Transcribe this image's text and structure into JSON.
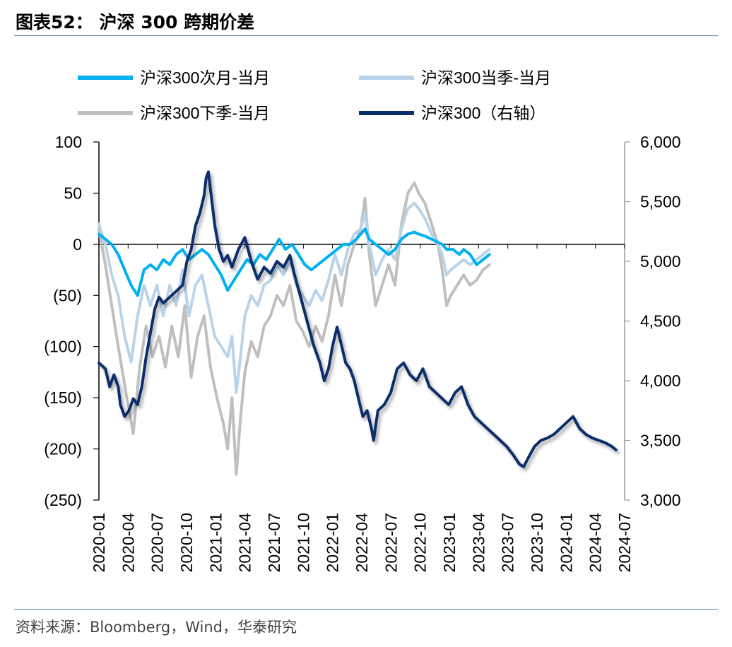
{
  "title": "图表52：  沪深 300 跨期价差",
  "source": "资料来源：Bloomberg，Wind，华泰研究",
  "chart_data": {
    "type": "line",
    "x_ticks": [
      "2020-01",
      "2020-04",
      "2020-07",
      "2020-10",
      "2021-01",
      "2021-04",
      "2021-07",
      "2021-10",
      "2022-01",
      "2022-04",
      "2022-07",
      "2022-10",
      "2023-01",
      "2023-04",
      "2023-07",
      "2023-10",
      "2024-01",
      "2024-04",
      "2024-07"
    ],
    "y_left": {
      "min": -250,
      "max": 100,
      "ticks": [
        "100",
        "50",
        "0",
        "(50)",
        "(100)",
        "(150)",
        "(200)",
        "(250)"
      ]
    },
    "y_right": {
      "min": 3000,
      "max": 6000,
      "ticks": [
        "6,000",
        "5,500",
        "5,000",
        "4,500",
        "4,000",
        "3,500",
        "3,000"
      ]
    },
    "series": [
      {
        "name": "沪深300下季-当月",
        "axis": "left",
        "color": "#bfbfbf",
        "points": [
          [
            0.0,
            15
          ],
          [
            0.3,
            -20
          ],
          [
            0.6,
            -60
          ],
          [
            0.9,
            -100
          ],
          [
            1.3,
            -150
          ],
          [
            1.6,
            -185
          ],
          [
            1.9,
            -120
          ],
          [
            2.2,
            -80
          ],
          [
            2.5,
            -110
          ],
          [
            2.8,
            -90
          ],
          [
            3.1,
            -120
          ],
          [
            3.4,
            -80
          ],
          [
            3.7,
            -110
          ],
          [
            4.0,
            -60
          ],
          [
            4.3,
            -130
          ],
          [
            4.6,
            -90
          ],
          [
            4.9,
            -70
          ],
          [
            5.2,
            -120
          ],
          [
            5.5,
            -150
          ],
          [
            5.8,
            -175
          ],
          [
            6.0,
            -200
          ],
          [
            6.2,
            -150
          ],
          [
            6.4,
            -225
          ],
          [
            6.6,
            -170
          ],
          [
            6.8,
            -125
          ],
          [
            7.1,
            -95
          ],
          [
            7.4,
            -110
          ],
          [
            7.7,
            -80
          ],
          [
            8.0,
            -70
          ],
          [
            8.3,
            -50
          ],
          [
            8.6,
            -60
          ],
          [
            8.9,
            -40
          ],
          [
            9.2,
            -75
          ],
          [
            9.5,
            -85
          ],
          [
            9.8,
            -100
          ],
          [
            10.1,
            -80
          ],
          [
            10.4,
            -95
          ],
          [
            10.7,
            -70
          ],
          [
            11.0,
            -30
          ],
          [
            11.3,
            -60
          ],
          [
            11.6,
            -20
          ],
          [
            11.9,
            0
          ],
          [
            12.2,
            15
          ],
          [
            12.4,
            45
          ],
          [
            12.6,
            -10
          ],
          [
            12.9,
            -60
          ],
          [
            13.2,
            -40
          ],
          [
            13.5,
            -20
          ],
          [
            13.8,
            -40
          ],
          [
            14.1,
            20
          ],
          [
            14.4,
            50
          ],
          [
            14.7,
            60
          ],
          [
            14.9,
            50
          ],
          [
            15.2,
            40
          ],
          [
            15.5,
            20
          ],
          [
            15.8,
            0
          ],
          [
            16.0,
            -25
          ],
          [
            16.2,
            -60
          ],
          [
            16.4,
            -50
          ],
          [
            16.7,
            -40
          ],
          [
            17.0,
            -30
          ],
          [
            17.3,
            -40
          ],
          [
            17.6,
            -35
          ],
          [
            17.9,
            -25
          ],
          [
            18.2,
            -20
          ]
        ]
      },
      {
        "name": "沪深300当季-当月",
        "axis": "left",
        "color": "#b9d4ea",
        "points": [
          [
            0.0,
            20
          ],
          [
            0.3,
            0
          ],
          [
            0.6,
            -30
          ],
          [
            0.9,
            -50
          ],
          [
            1.2,
            -90
          ],
          [
            1.5,
            -115
          ],
          [
            1.8,
            -70
          ],
          [
            2.1,
            -40
          ],
          [
            2.4,
            -60
          ],
          [
            2.7,
            -40
          ],
          [
            3.0,
            -70
          ],
          [
            3.3,
            -40
          ],
          [
            3.6,
            -60
          ],
          [
            3.9,
            -25
          ],
          [
            4.2,
            -70
          ],
          [
            4.5,
            -40
          ],
          [
            4.8,
            -30
          ],
          [
            5.1,
            -60
          ],
          [
            5.4,
            -90
          ],
          [
            5.7,
            -100
          ],
          [
            6.0,
            -110
          ],
          [
            6.2,
            -90
          ],
          [
            6.4,
            -145
          ],
          [
            6.6,
            -110
          ],
          [
            6.8,
            -70
          ],
          [
            7.1,
            -50
          ],
          [
            7.4,
            -60
          ],
          [
            7.7,
            -40
          ],
          [
            8.0,
            -35
          ],
          [
            8.3,
            -20
          ],
          [
            8.6,
            -30
          ],
          [
            8.9,
            -15
          ],
          [
            9.2,
            -40
          ],
          [
            9.5,
            -50
          ],
          [
            9.8,
            -60
          ],
          [
            10.1,
            -45
          ],
          [
            10.4,
            -55
          ],
          [
            10.7,
            -35
          ],
          [
            11.0,
            -10
          ],
          [
            11.3,
            -30
          ],
          [
            11.6,
            -5
          ],
          [
            11.9,
            10
          ],
          [
            12.2,
            15
          ],
          [
            12.4,
            30
          ],
          [
            12.6,
            0
          ],
          [
            12.9,
            -30
          ],
          [
            13.2,
            -15
          ],
          [
            13.5,
            -5
          ],
          [
            13.8,
            -15
          ],
          [
            14.1,
            15
          ],
          [
            14.4,
            35
          ],
          [
            14.7,
            40
          ],
          [
            14.9,
            35
          ],
          [
            15.2,
            25
          ],
          [
            15.5,
            10
          ],
          [
            15.8,
            0
          ],
          [
            16.0,
            -10
          ],
          [
            16.2,
            -30
          ],
          [
            16.4,
            -25
          ],
          [
            16.7,
            -20
          ],
          [
            17.0,
            -15
          ],
          [
            17.3,
            -20
          ],
          [
            17.6,
            -15
          ],
          [
            17.9,
            -10
          ],
          [
            18.2,
            -5
          ]
        ]
      },
      {
        "name": "沪深300次月-当月",
        "axis": "left",
        "color": "#00b0f0",
        "points": [
          [
            0.0,
            10
          ],
          [
            0.3,
            5
          ],
          [
            0.6,
            0
          ],
          [
            0.9,
            -10
          ],
          [
            1.2,
            -25
          ],
          [
            1.5,
            -40
          ],
          [
            1.8,
            -50
          ],
          [
            2.1,
            -25
          ],
          [
            2.4,
            -20
          ],
          [
            2.7,
            -25
          ],
          [
            3.0,
            -15
          ],
          [
            3.3,
            -20
          ],
          [
            3.6,
            -10
          ],
          [
            3.9,
            -5
          ],
          [
            4.2,
            -15
          ],
          [
            4.5,
            -10
          ],
          [
            4.8,
            -5
          ],
          [
            5.1,
            -10
          ],
          [
            5.4,
            -20
          ],
          [
            5.7,
            -30
          ],
          [
            6.0,
            -45
          ],
          [
            6.3,
            -35
          ],
          [
            6.6,
            -25
          ],
          [
            6.9,
            -15
          ],
          [
            7.2,
            -20
          ],
          [
            7.5,
            -10
          ],
          [
            7.8,
            -15
          ],
          [
            8.1,
            -5
          ],
          [
            8.4,
            5
          ],
          [
            8.7,
            -5
          ],
          [
            9.0,
            0
          ],
          [
            9.3,
            -10
          ],
          [
            9.6,
            -20
          ],
          [
            9.9,
            -25
          ],
          [
            10.2,
            -20
          ],
          [
            10.5,
            -15
          ],
          [
            10.8,
            -10
          ],
          [
            11.1,
            -5
          ],
          [
            11.4,
            0
          ],
          [
            11.7,
            0
          ],
          [
            12.0,
            5
          ],
          [
            12.2,
            10
          ],
          [
            12.4,
            15
          ],
          [
            12.6,
            5
          ],
          [
            12.9,
            0
          ],
          [
            13.2,
            -5
          ],
          [
            13.5,
            -10
          ],
          [
            13.8,
            -5
          ],
          [
            14.1,
            5
          ],
          [
            14.4,
            10
          ],
          [
            14.7,
            12
          ],
          [
            14.9,
            10
          ],
          [
            15.2,
            8
          ],
          [
            15.5,
            5
          ],
          [
            15.8,
            2
          ],
          [
            16.0,
            0
          ],
          [
            16.2,
            -5
          ],
          [
            16.5,
            -5
          ],
          [
            16.8,
            -10
          ],
          [
            17.0,
            -5
          ],
          [
            17.3,
            -10
          ],
          [
            17.6,
            -20
          ],
          [
            17.9,
            -15
          ],
          [
            18.2,
            -10
          ]
        ]
      },
      {
        "name": "沪深300（右轴）",
        "axis": "right",
        "color": "#0b2f6b",
        "points": [
          [
            0.0,
            4150
          ],
          [
            0.3,
            4100
          ],
          [
            0.5,
            3950
          ],
          [
            0.7,
            4050
          ],
          [
            0.9,
            3950
          ],
          [
            1.0,
            3800
          ],
          [
            1.2,
            3700
          ],
          [
            1.4,
            3750
          ],
          [
            1.6,
            3850
          ],
          [
            1.8,
            3800
          ],
          [
            2.0,
            3950
          ],
          [
            2.2,
            4200
          ],
          [
            2.4,
            4400
          ],
          [
            2.6,
            4600
          ],
          [
            2.8,
            4700
          ],
          [
            3.0,
            4650
          ],
          [
            3.3,
            4700
          ],
          [
            3.6,
            4750
          ],
          [
            3.9,
            4800
          ],
          [
            4.1,
            5000
          ],
          [
            4.3,
            5100
          ],
          [
            4.5,
            5300
          ],
          [
            4.7,
            5400
          ],
          [
            4.9,
            5550
          ],
          [
            5.0,
            5700
          ],
          [
            5.1,
            5750
          ],
          [
            5.2,
            5600
          ],
          [
            5.4,
            5300
          ],
          [
            5.6,
            5100
          ],
          [
            5.8,
            5000
          ],
          [
            6.0,
            5050
          ],
          [
            6.2,
            4950
          ],
          [
            6.5,
            5100
          ],
          [
            6.8,
            5200
          ],
          [
            7.1,
            5000
          ],
          [
            7.4,
            4850
          ],
          [
            7.7,
            4950
          ],
          [
            8.0,
            4900
          ],
          [
            8.3,
            5000
          ],
          [
            8.6,
            4950
          ],
          [
            8.9,
            5050
          ],
          [
            9.1,
            4900
          ],
          [
            9.4,
            4700
          ],
          [
            9.7,
            4500
          ],
          [
            10.0,
            4300
          ],
          [
            10.3,
            4150
          ],
          [
            10.5,
            4000
          ],
          [
            10.7,
            4100
          ],
          [
            10.9,
            4300
          ],
          [
            11.1,
            4450
          ],
          [
            11.3,
            4300
          ],
          [
            11.5,
            4150
          ],
          [
            11.7,
            4100
          ],
          [
            11.9,
            4000
          ],
          [
            12.1,
            3850
          ],
          [
            12.3,
            3700
          ],
          [
            12.5,
            3750
          ],
          [
            12.7,
            3600
          ],
          [
            12.8,
            3500
          ],
          [
            13.0,
            3750
          ],
          [
            13.3,
            3800
          ],
          [
            13.6,
            3900
          ],
          [
            13.9,
            4100
          ],
          [
            14.2,
            4150
          ],
          [
            14.5,
            4050
          ],
          [
            14.8,
            4000
          ],
          [
            15.1,
            4100
          ],
          [
            15.4,
            3950
          ],
          [
            15.7,
            3900
          ],
          [
            16.0,
            3850
          ],
          [
            16.3,
            3800
          ],
          [
            16.6,
            3900
          ],
          [
            16.9,
            3950
          ],
          [
            17.2,
            3800
          ],
          [
            17.5,
            3700
          ],
          [
            17.8,
            3650
          ],
          [
            18.1,
            3600
          ],
          [
            18.4,
            3550
          ],
          [
            18.7,
            3500
          ],
          [
            19.0,
            3450
          ],
          [
            19.3,
            3380
          ],
          [
            19.6,
            3300
          ],
          [
            19.8,
            3280
          ],
          [
            20.0,
            3350
          ],
          [
            20.3,
            3450
          ],
          [
            20.6,
            3500
          ],
          [
            20.9,
            3520
          ],
          [
            21.2,
            3550
          ],
          [
            21.5,
            3600
          ],
          [
            21.8,
            3650
          ],
          [
            22.1,
            3700
          ],
          [
            22.4,
            3600
          ],
          [
            22.7,
            3550
          ],
          [
            23.0,
            3520
          ],
          [
            23.3,
            3500
          ],
          [
            23.6,
            3480
          ],
          [
            23.9,
            3450
          ],
          [
            24.1,
            3420
          ]
        ]
      }
    ]
  }
}
